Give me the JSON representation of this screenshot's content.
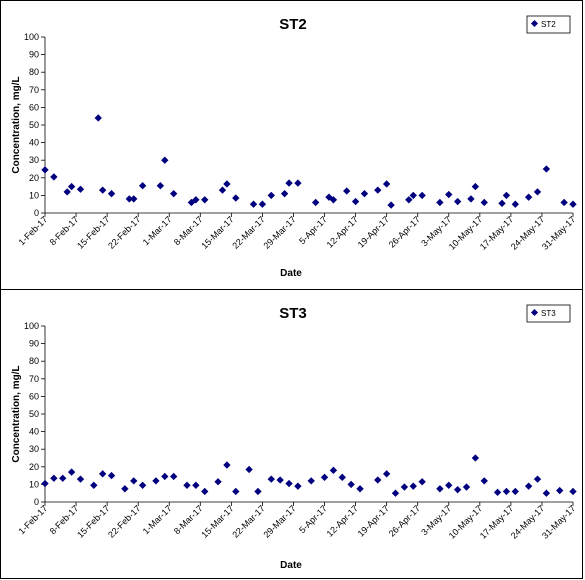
{
  "chart_data": [
    {
      "type": "scatter",
      "title": "ST2",
      "xlabel": "Date",
      "ylabel": "Concentration, mg/L",
      "ylim": [
        0,
        100
      ],
      "yticks": [
        0,
        10,
        20,
        30,
        40,
        50,
        60,
        70,
        80,
        90,
        100
      ],
      "xlim": [
        "2017-02-01",
        "2017-05-31"
      ],
      "xtick_labels": [
        "1-Feb-17",
        "8-Feb-17",
        "15-Feb-17",
        "22-Feb-17",
        "1-Mar-17",
        "8-Mar-17",
        "15-Mar-17",
        "22-Mar-17",
        "29-Mar-17",
        "5-Apr-17",
        "12-Apr-17",
        "19-Apr-17",
        "26-Apr-17",
        "3-May-17",
        "10-May-17",
        "17-May-17",
        "24-May-17",
        "31-May-17"
      ],
      "legend": "top-right",
      "series": [
        {
          "name": "ST2",
          "color": "#00007f",
          "points": [
            [
              "2017-02-01",
              24.5
            ],
            [
              "2017-02-03",
              20.5
            ],
            [
              "2017-02-06",
              12
            ],
            [
              "2017-02-07",
              15
            ],
            [
              "2017-02-09",
              13.5
            ],
            [
              "2017-02-13",
              54
            ],
            [
              "2017-02-14",
              13
            ],
            [
              "2017-02-16",
              11
            ],
            [
              "2017-02-20",
              8
            ],
            [
              "2017-02-21",
              8
            ],
            [
              "2017-02-23",
              15.5
            ],
            [
              "2017-02-27",
              15.5
            ],
            [
              "2017-02-28",
              30
            ],
            [
              "2017-03-02",
              11
            ],
            [
              "2017-03-06",
              6
            ],
            [
              "2017-03-07",
              7.5
            ],
            [
              "2017-03-09",
              7.5
            ],
            [
              "2017-03-13",
              13
            ],
            [
              "2017-03-14",
              16.5
            ],
            [
              "2017-03-16",
              8.5
            ],
            [
              "2017-03-20",
              5
            ],
            [
              "2017-03-22",
              5
            ],
            [
              "2017-03-24",
              10
            ],
            [
              "2017-03-27",
              11
            ],
            [
              "2017-03-28",
              17
            ],
            [
              "2017-03-30",
              17
            ],
            [
              "2017-04-03",
              6
            ],
            [
              "2017-04-06",
              9
            ],
            [
              "2017-04-07",
              7.5
            ],
            [
              "2017-04-10",
              12.5
            ],
            [
              "2017-04-12",
              6.5
            ],
            [
              "2017-04-14",
              11
            ],
            [
              "2017-04-17",
              13
            ],
            [
              "2017-04-19",
              16.5
            ],
            [
              "2017-04-20",
              4.5
            ],
            [
              "2017-04-24",
              7.5
            ],
            [
              "2017-04-25",
              10
            ],
            [
              "2017-04-27",
              10
            ],
            [
              "2017-05-01",
              6
            ],
            [
              "2017-05-03",
              10.5
            ],
            [
              "2017-05-05",
              6.5
            ],
            [
              "2017-05-08",
              8
            ],
            [
              "2017-05-09",
              15
            ],
            [
              "2017-05-11",
              6
            ],
            [
              "2017-05-15",
              5.5
            ],
            [
              "2017-05-16",
              10
            ],
            [
              "2017-05-18",
              5
            ],
            [
              "2017-05-21",
              9
            ],
            [
              "2017-05-23",
              12
            ],
            [
              "2017-05-25",
              25
            ],
            [
              "2017-05-29",
              6
            ],
            [
              "2017-05-31",
              5
            ]
          ]
        }
      ]
    },
    {
      "type": "scatter",
      "title": "ST3",
      "xlabel": "Date",
      "ylabel": "Concentration, mg/L",
      "ylim": [
        0,
        100
      ],
      "yticks": [
        0,
        10,
        20,
        30,
        40,
        50,
        60,
        70,
        80,
        90,
        100
      ],
      "xlim": [
        "2017-02-01",
        "2017-05-31"
      ],
      "xtick_labels": [
        "1-Feb-17",
        "8-Feb-17",
        "15-Feb-17",
        "22-Feb-17",
        "1-Mar-17",
        "8-Mar-17",
        "15-Mar-17",
        "22-Mar-17",
        "29-Mar-17",
        "5-Apr-17",
        "12-Apr-17",
        "19-Apr-17",
        "26-Apr-17",
        "3-May-17",
        "10-May-17",
        "17-May-17",
        "24-May-17",
        "31-May-17"
      ],
      "legend": "top-right",
      "series": [
        {
          "name": "ST3",
          "color": "#00007f",
          "points": [
            [
              "2017-02-01",
              10.5
            ],
            [
              "2017-02-03",
              13.5
            ],
            [
              "2017-02-05",
              13.5
            ],
            [
              "2017-02-07",
              17
            ],
            [
              "2017-02-09",
              13
            ],
            [
              "2017-02-12",
              9.5
            ],
            [
              "2017-02-14",
              16
            ],
            [
              "2017-02-16",
              15
            ],
            [
              "2017-02-19",
              7.5
            ],
            [
              "2017-02-21",
              12
            ],
            [
              "2017-02-23",
              9.5
            ],
            [
              "2017-02-26",
              12
            ],
            [
              "2017-02-28",
              14.5
            ],
            [
              "2017-03-02",
              14.5
            ],
            [
              "2017-03-05",
              9.5
            ],
            [
              "2017-03-07",
              9.5
            ],
            [
              "2017-03-09",
              6
            ],
            [
              "2017-03-12",
              11.5
            ],
            [
              "2017-03-14",
              21
            ],
            [
              "2017-03-16",
              6
            ],
            [
              "2017-03-19",
              18.5
            ],
            [
              "2017-03-21",
              6
            ],
            [
              "2017-03-24",
              13
            ],
            [
              "2017-03-26",
              12.5
            ],
            [
              "2017-03-28",
              10.5
            ],
            [
              "2017-03-30",
              9
            ],
            [
              "2017-04-02",
              12
            ],
            [
              "2017-04-05",
              14
            ],
            [
              "2017-04-07",
              18
            ],
            [
              "2017-04-09",
              14
            ],
            [
              "2017-04-11",
              10
            ],
            [
              "2017-04-13",
              7.5
            ],
            [
              "2017-04-17",
              12.5
            ],
            [
              "2017-04-19",
              16
            ],
            [
              "2017-04-21",
              5
            ],
            [
              "2017-04-23",
              8.5
            ],
            [
              "2017-04-25",
              9
            ],
            [
              "2017-04-27",
              11.5
            ],
            [
              "2017-05-01",
              7.5
            ],
            [
              "2017-05-03",
              9.5
            ],
            [
              "2017-05-05",
              7
            ],
            [
              "2017-05-07",
              8.5
            ],
            [
              "2017-05-09",
              25
            ],
            [
              "2017-05-11",
              12
            ],
            [
              "2017-05-14",
              5.5
            ],
            [
              "2017-05-16",
              6
            ],
            [
              "2017-05-18",
              6
            ],
            [
              "2017-05-21",
              9
            ],
            [
              "2017-05-23",
              13
            ],
            [
              "2017-05-25",
              5
            ],
            [
              "2017-05-28",
              6.5
            ],
            [
              "2017-05-31",
              6
            ]
          ]
        }
      ]
    }
  ]
}
